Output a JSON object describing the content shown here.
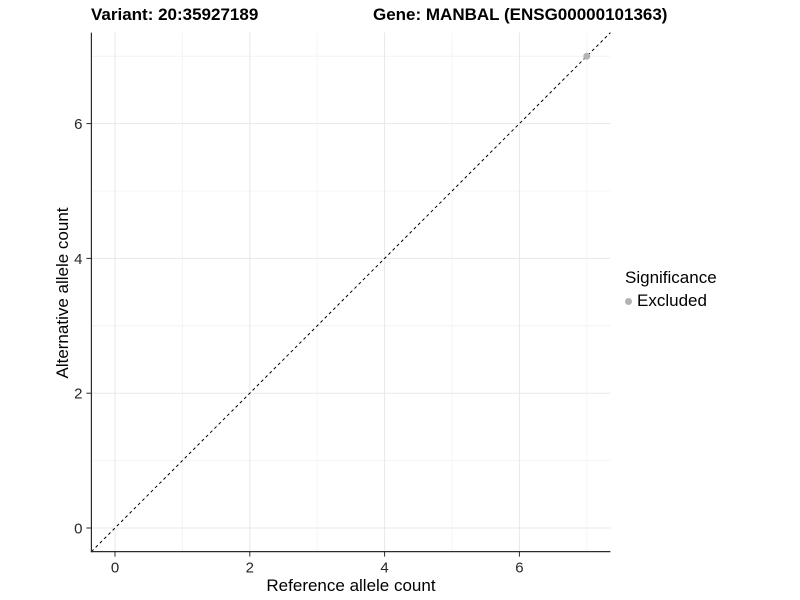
{
  "header": {
    "variant_title": "Variant: 20:35927189",
    "gene_title": "Gene: MANBAL (ENSG00000101363)"
  },
  "chart_data": {
    "type": "scatter",
    "title": "Variant: 20:35927189   Gene: MANBAL (ENSG00000101363)",
    "xlabel": "Reference allele count",
    "ylabel": "Alternative allele count",
    "xlim": [
      -0.35,
      7.35
    ],
    "ylim": [
      -0.35,
      7.35
    ],
    "x_ticks": [
      0,
      2,
      4,
      6
    ],
    "y_ticks": [
      0,
      2,
      4,
      6
    ],
    "x_minor_ticks": [
      1,
      3,
      5,
      7
    ],
    "y_minor_ticks": [
      1,
      3,
      5,
      7
    ],
    "grid": true,
    "reference_line": {
      "style": "dashed",
      "slope": 1,
      "intercept": 0
    },
    "series": [
      {
        "name": "Excluded",
        "color": "#b3b3b3",
        "points": [
          [
            7,
            7
          ]
        ]
      }
    ],
    "legend": {
      "title": "Significance",
      "position": "right",
      "entries": [
        {
          "label": "Excluded",
          "color": "#b3b3b3"
        }
      ]
    }
  },
  "colors": {
    "background": "#ffffff",
    "grid_major": "#e8e8e8",
    "grid_minor": "#f4f4f4",
    "axis_line": "#2b2b2b",
    "tick_label": "#262626",
    "reference_line": "#000000",
    "point": "#b3b3b3"
  }
}
